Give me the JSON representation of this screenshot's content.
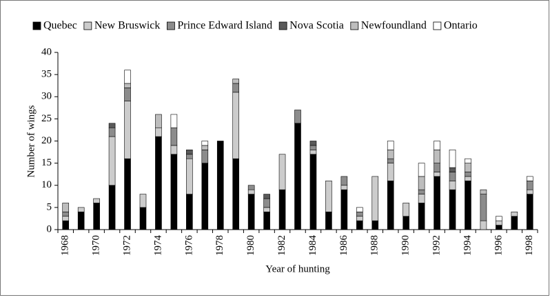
{
  "chart_data": {
    "type": "bar",
    "stacked": true,
    "xlabel": "Year of hunting",
    "ylabel": "Number of wings",
    "categories": [
      "1968",
      null,
      "1970",
      null,
      "1972",
      null,
      "1974",
      null,
      "1976",
      null,
      "1978",
      null,
      "1980",
      null,
      "1982",
      null,
      "1984",
      null,
      "1986",
      null,
      "1988",
      null,
      "1990",
      null,
      "1992",
      null,
      "1994",
      null,
      "1996",
      null,
      "1998"
    ],
    "series": [
      {
        "name": "Quebec",
        "color": "#000000",
        "values": [
          2,
          4,
          6,
          10,
          16,
          5,
          21,
          17,
          8,
          15,
          20,
          16,
          8,
          4,
          9,
          24,
          17,
          4,
          9,
          2,
          2,
          11,
          3,
          6,
          12,
          9,
          11,
          0,
          1,
          3,
          8
        ]
      },
      {
        "name": "New Bruswick",
        "color": "#cccccc",
        "values": [
          1,
          1,
          1,
          11,
          13,
          3,
          2,
          2,
          8,
          0,
          0,
          15,
          1,
          1,
          8,
          0,
          1,
          7,
          1,
          1,
          10,
          4,
          3,
          2,
          1,
          2,
          1,
          2,
          1,
          1,
          1
        ]
      },
      {
        "name": "Prince Edward Island",
        "color": "#8c8c8c",
        "values": [
          1,
          0,
          0,
          2,
          3,
          0,
          0,
          4,
          1,
          3,
          0,
          2,
          1,
          2,
          0,
          3,
          1,
          0,
          2,
          1,
          0,
          1,
          0,
          1,
          2,
          2,
          1,
          6,
          0,
          0,
          2
        ]
      },
      {
        "name": "Nova Scotia",
        "color": "#5a5a5a",
        "values": [
          0,
          0,
          0,
          1,
          0,
          0,
          0,
          0,
          1,
          0,
          0,
          0,
          0,
          1,
          0,
          0,
          1,
          0,
          0,
          0,
          0,
          0,
          0,
          0,
          0,
          1,
          0,
          0,
          0,
          0,
          0
        ]
      },
      {
        "name": "Newfoundland",
        "color": "#bdbdbd",
        "values": [
          2,
          0,
          0,
          0,
          1,
          0,
          3,
          0,
          0,
          1,
          0,
          1,
          0,
          0,
          0,
          0,
          0,
          0,
          0,
          0,
          0,
          2,
          0,
          3,
          3,
          0,
          2,
          1,
          0,
          0,
          0
        ]
      },
      {
        "name": "Ontario",
        "color": "#ffffff",
        "values": [
          0,
          0,
          0,
          0,
          3,
          0,
          0,
          3,
          0,
          1,
          0,
          0,
          0,
          0,
          0,
          0,
          0,
          0,
          0,
          1,
          0,
          2,
          0,
          3,
          2,
          4,
          1,
          0,
          1,
          0,
          1
        ]
      }
    ],
    "ylim": [
      0,
      40
    ],
    "yticks": [
      0,
      5,
      10,
      15,
      20,
      25,
      30,
      35,
      40
    ],
    "grid": false
  }
}
